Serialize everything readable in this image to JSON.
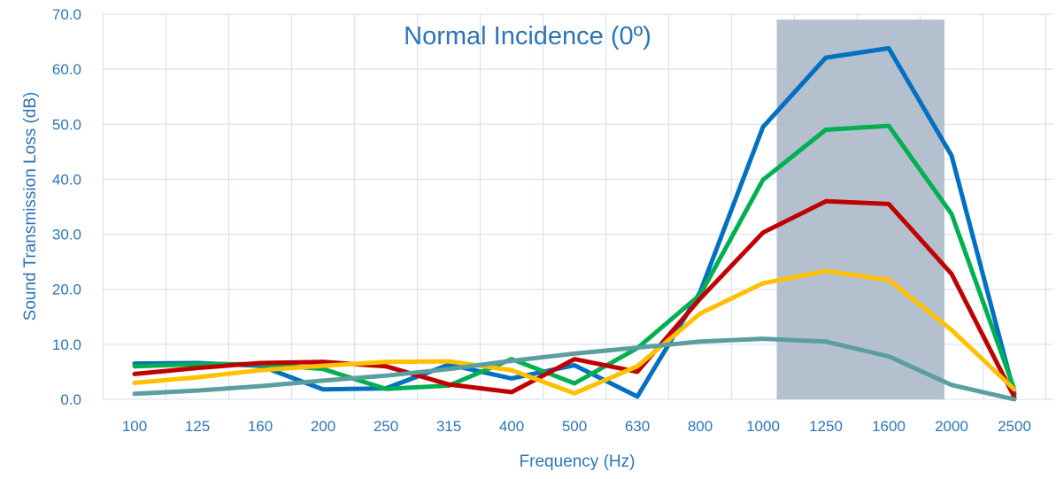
{
  "chart_data": {
    "type": "line",
    "title": "Normal Incidence (0º)",
    "xlabel": "Frequency (Hz)",
    "ylabel": "Sound Transmission Loss (dB)",
    "categories": [
      "100",
      "125",
      "160",
      "200",
      "250",
      "315",
      "400",
      "500",
      "630",
      "800",
      "1000",
      "1250",
      "1600",
      "2000",
      "2500"
    ],
    "ylim": [
      0,
      70
    ],
    "yticks": [
      "0.0",
      "10.0",
      "20.0",
      "30.0",
      "40.0",
      "50.0",
      "60.0",
      "70.0"
    ],
    "grid": true,
    "legend": "none",
    "highlight_band": {
      "from": 1050,
      "to": 1950,
      "color": "#ADB9CA"
    },
    "series": [
      {
        "color": "#0070C0",
        "values": [
          6.5,
          6.6,
          6.1,
          1.8,
          2.0,
          6.3,
          3.8,
          6.2,
          0.5,
          19.5,
          49.5,
          62.1,
          63.8,
          44.3,
          1.0
        ]
      },
      {
        "color": "#00B050",
        "values": [
          6.0,
          6.4,
          6.4,
          5.5,
          1.9,
          2.5,
          7.3,
          2.9,
          9.3,
          19.0,
          39.9,
          49.0,
          49.7,
          33.7,
          1.8
        ]
      },
      {
        "color": "#C00000",
        "values": [
          4.6,
          5.7,
          6.6,
          6.8,
          6.0,
          2.7,
          1.3,
          7.3,
          5.0,
          18.3,
          30.3,
          36.0,
          35.5,
          22.8,
          0.4
        ]
      },
      {
        "color": "#FFC000",
        "values": [
          3.0,
          4.0,
          5.3,
          6.1,
          6.8,
          6.9,
          5.3,
          1.1,
          6.0,
          15.6,
          21.1,
          23.3,
          21.7,
          12.6,
          1.8
        ]
      },
      {
        "color": "#5B9EA0",
        "values": [
          1.0,
          1.6,
          2.4,
          3.4,
          4.3,
          5.5,
          7.0,
          8.3,
          9.4,
          10.5,
          11.0,
          10.5,
          7.8,
          2.6,
          0.0
        ]
      }
    ]
  }
}
